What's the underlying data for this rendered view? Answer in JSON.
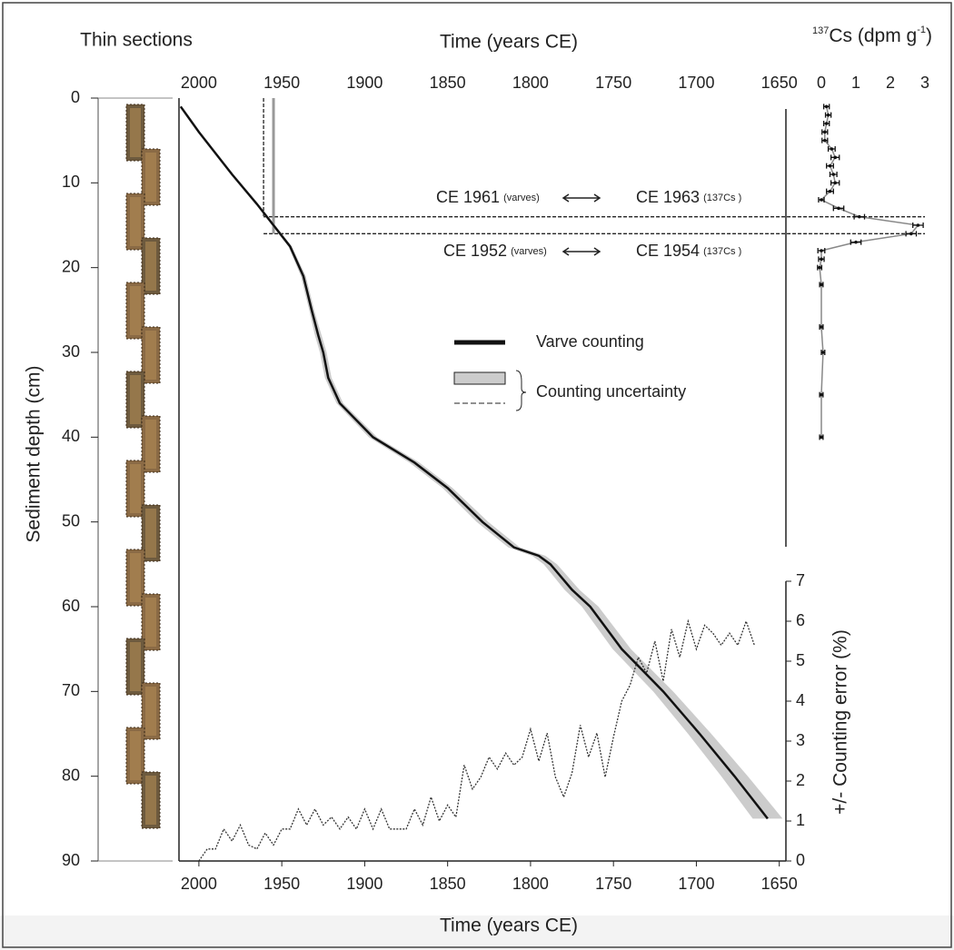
{
  "chart_data": [
    {
      "type": "line",
      "panel_label": "Thin sections",
      "top_xlabel": "Time (years CE)",
      "xlabel": "Time (years CE)",
      "ylabel": "Sediment depth (cm)",
      "y2label": "+/- Counting error (%)",
      "xlim": [
        2012,
        1646
      ],
      "xticks": [
        2000,
        1950,
        1900,
        1850,
        1800,
        1750,
        1700,
        1650
      ],
      "ylim": [
        0,
        90
      ],
      "yticks": [
        0,
        10,
        20,
        30,
        40,
        50,
        60,
        70,
        80,
        90
      ],
      "y2lim": [
        0,
        7
      ],
      "y2ticks": [
        0,
        1,
        2,
        3,
        4,
        5,
        6,
        7
      ],
      "band_color": "#cccccc",
      "series": [
        {
          "name": "Varve counting",
          "color": "#111111",
          "x": [
            2011,
            2000,
            1980,
            1965,
            1955,
            1945,
            1937,
            1932,
            1928,
            1925,
            1922,
            1915,
            1895,
            1870,
            1850,
            1829,
            1810,
            1795,
            1788,
            1775,
            1764,
            1745,
            1720,
            1698,
            1677,
            1657
          ],
          "values": [
            1,
            4,
            9,
            12.5,
            15,
            17.5,
            21,
            25,
            28,
            30,
            33,
            36,
            40,
            43,
            46,
            50,
            53,
            54,
            55,
            58,
            60,
            65,
            70,
            75,
            80,
            85
          ],
          "band": [
            0,
            0,
            0.5,
            0.5,
            1,
            1,
            1.5,
            1.5,
            2,
            2,
            2,
            2,
            2.5,
            3,
            3,
            3.5,
            3.5,
            4,
            4,
            4.5,
            5,
            5.5,
            6,
            7,
            8,
            9
          ]
        },
        {
          "name": "Counting uncertainty",
          "color": "#333333",
          "axis": "y2",
          "x": [
            2000,
            1995,
            1990,
            1985,
            1980,
            1975,
            1970,
            1965,
            1960,
            1955,
            1950,
            1945,
            1940,
            1935,
            1930,
            1925,
            1920,
            1915,
            1910,
            1905,
            1900,
            1895,
            1890,
            1885,
            1875,
            1870,
            1865,
            1860,
            1855,
            1850,
            1845,
            1840,
            1835,
            1830,
            1825,
            1820,
            1815,
            1810,
            1805,
            1800,
            1795,
            1790,
            1785,
            1780,
            1775,
            1770,
            1765,
            1760,
            1755,
            1750,
            1745,
            1740,
            1735,
            1730,
            1725,
            1720,
            1715,
            1710,
            1705,
            1700,
            1695,
            1690,
            1685,
            1680,
            1675,
            1670,
            1665
          ],
          "values": [
            0,
            0.3,
            0.3,
            0.8,
            0.5,
            0.9,
            0.4,
            0.3,
            0.7,
            0.4,
            0.8,
            0.8,
            1.3,
            0.9,
            1.3,
            0.9,
            1.1,
            0.8,
            1.1,
            0.8,
            1.3,
            0.8,
            1.3,
            0.8,
            0.8,
            1.3,
            0.9,
            1.6,
            1.0,
            1.4,
            1.1,
            2.4,
            1.8,
            2.1,
            2.6,
            2.3,
            2.7,
            2.4,
            2.6,
            3.3,
            2.5,
            3.2,
            2.1,
            1.6,
            2.2,
            3.4,
            2.6,
            3.2,
            2.1,
            3.1,
            4.0,
            4.4,
            5.1,
            4.7,
            5.5,
            4.5,
            5.8,
            5.1,
            6.0,
            5.3,
            5.9,
            5.7,
            5.4,
            5.7,
            5.4,
            6.0,
            5.4
          ]
        }
      ],
      "ref_years": [
        1961,
        1955
      ],
      "ref_depths": [
        14,
        16
      ],
      "annotations": [
        {
          "text": "CE 1961",
          "note": "(varves)"
        },
        {
          "text": "CE 1963",
          "note": "(137Cs )"
        },
        {
          "text": "CE 1952",
          "note": "(varves)"
        },
        {
          "text": "CE 1954",
          "note": "(137Cs )"
        }
      ]
    },
    {
      "type": "line",
      "title_sup": "137",
      "title_main": "Cs (dpm g",
      "title_exp": "-1",
      "title_end": ")",
      "xlim": [
        -0.5,
        3
      ],
      "xticks": [
        0,
        1,
        2,
        3
      ],
      "series": [
        {
          "color": "#888888",
          "depth": [
            1,
            2,
            3,
            4,
            5,
            6,
            7,
            8,
            9,
            10,
            11,
            12,
            13,
            14,
            15,
            16,
            17,
            18,
            19,
            20,
            22,
            27,
            30,
            35,
            40
          ],
          "values": [
            0.15,
            0.2,
            0.15,
            0.1,
            0.1,
            0.3,
            0.4,
            0.25,
            0.35,
            0.4,
            0.25,
            0.0,
            0.5,
            1.1,
            2.8,
            2.6,
            1.0,
            0.0,
            0.0,
            -0.05,
            0.0,
            0.0,
            0.05,
            0.0,
            0.0
          ],
          "errors": [
            0.08,
            0.08,
            0.08,
            0.08,
            0.08,
            0.1,
            0.12,
            0.1,
            0.1,
            0.12,
            0.1,
            0.08,
            0.15,
            0.15,
            0.15,
            0.15,
            0.15,
            0.1,
            0.08,
            0.06,
            0.05,
            0.05,
            0.05,
            0.05,
            0.05
          ]
        }
      ]
    }
  ]
}
